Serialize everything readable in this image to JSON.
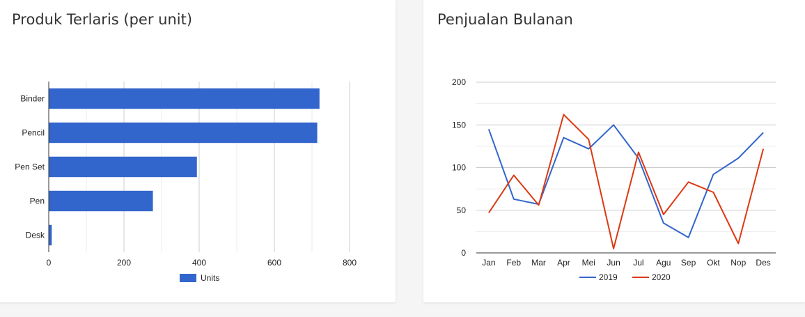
{
  "charts": {
    "bar_title": "Produk Terlaris (per unit)",
    "line_title": "Penjualan Bulanan"
  },
  "colors": {
    "blue": "#3366cc",
    "red": "#dc3912",
    "grid": "#cccccc",
    "axis": "#333333"
  },
  "chart_data": [
    {
      "type": "bar",
      "orientation": "horizontal",
      "title": "Produk Terlaris (per unit)",
      "categories": [
        "Binder",
        "Pencil",
        "Pen Set",
        "Pen",
        "Desk"
      ],
      "series": [
        {
          "name": "Units",
          "values": [
            720,
            714,
            394,
            277,
            8
          ],
          "color": "#3366cc"
        }
      ],
      "xlim": [
        0,
        800
      ],
      "xticks": [
        0,
        200,
        400,
        600,
        800
      ],
      "grid": true,
      "legend": "bottom"
    },
    {
      "type": "line",
      "title": "Penjualan Bulanan",
      "categories": [
        "Jan",
        "Feb",
        "Mar",
        "Apr",
        "Mei",
        "Jun",
        "Jul",
        "Agu",
        "Sep",
        "Okt",
        "Nop",
        "Des"
      ],
      "series": [
        {
          "name": "2019",
          "values": [
            145,
            63,
            57,
            135,
            122,
            150,
            111,
            35,
            18,
            92,
            111,
            141
          ],
          "color": "#3366cc"
        },
        {
          "name": "2020",
          "values": [
            47,
            91,
            56,
            162,
            133,
            5,
            118,
            45,
            83,
            71,
            11,
            122
          ],
          "color": "#dc3912"
        }
      ],
      "ylim": [
        0,
        200
      ],
      "yticks": [
        0,
        50,
        100,
        150,
        200
      ],
      "grid": true,
      "legend": "bottom"
    }
  ]
}
